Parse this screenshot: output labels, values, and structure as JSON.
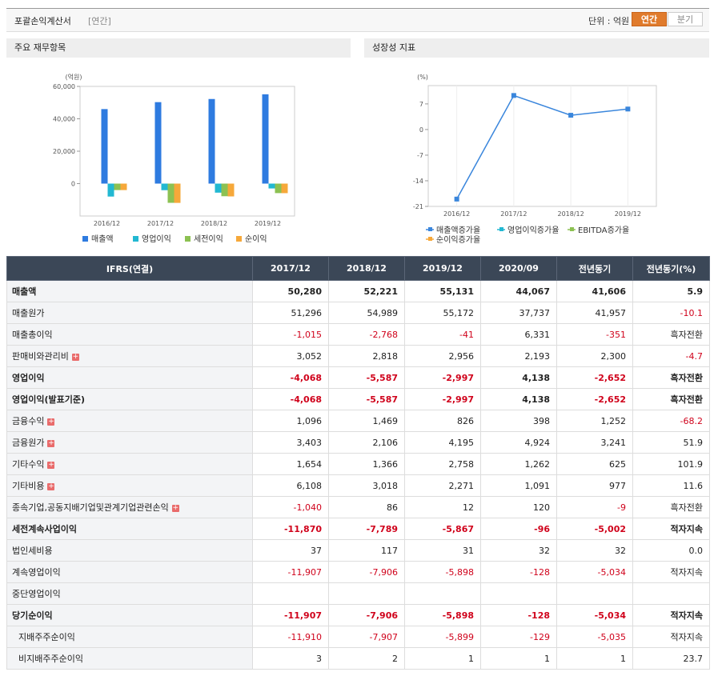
{
  "header": {
    "title": "포괄손익계산서",
    "period": "[연간]",
    "unit": "단위 : 억원",
    "tabs": [
      "연간",
      "분기"
    ],
    "active_tab": 0
  },
  "chart_data": [
    {
      "type": "bar",
      "title": "주요 재무항목",
      "y_label": "(억원)",
      "categories": [
        "2016/12",
        "2017/12",
        "2018/12",
        "2019/12"
      ],
      "ylim": [
        -20000,
        60000
      ],
      "yticks": [
        {
          "value": 60000,
          "label": "60,000"
        },
        {
          "value": 40000,
          "label": "40,000"
        },
        {
          "value": 20000,
          "label": "20,000"
        },
        0
      ],
      "series": [
        {
          "name": "매출액",
          "color": "#2e7be0",
          "values": [
            46000,
            50280,
            52221,
            55131
          ]
        },
        {
          "name": "영업이익",
          "color": "#22b8d2",
          "values": [
            -8000,
            -4068,
            -5587,
            -2997
          ]
        },
        {
          "name": "세전이익",
          "color": "#8cc152",
          "values": [
            -4000,
            -11870,
            -7789,
            -5867
          ]
        },
        {
          "name": "순이익",
          "color": "#f6a83a",
          "values": [
            -4000,
            -11907,
            -7906,
            -5898
          ]
        }
      ]
    },
    {
      "type": "line",
      "title": "성장성 지표",
      "y_label": "(%)",
      "categories": [
        "2016/12",
        "2017/12",
        "2018/12",
        "2019/12"
      ],
      "ylim": [
        -21,
        12
      ],
      "yticks": [
        7,
        0,
        -7,
        -14,
        -21
      ],
      "series": [
        {
          "name": "매출액증가율",
          "color": "#3a86dc",
          "values": [
            -19,
            9.3,
            3.9,
            5.6
          ]
        },
        {
          "name": "영업이익증가율",
          "color": "#22b8d2",
          "values": [
            null,
            null,
            null,
            null
          ]
        },
        {
          "name": "EBITDA증가율",
          "color": "#8cc152",
          "values": [
            null,
            null,
            null,
            null
          ]
        },
        {
          "name": "순이익증가율",
          "color": "#f6a83a",
          "values": [
            null,
            null,
            null,
            null
          ]
        }
      ]
    }
  ],
  "table": {
    "columns": [
      "IFRS(연결)",
      "2017/12",
      "2018/12",
      "2019/12",
      "2020/09",
      "전년동기",
      "전년동기(%)"
    ],
    "rows": [
      {
        "label": "매출액",
        "bold": true,
        "values": [
          "50,280",
          "52,221",
          "55,131",
          "44,067",
          "41,606",
          "5.9"
        ]
      },
      {
        "label": "매출원가",
        "values": [
          "51,296",
          "54,989",
          "55,172",
          "37,737",
          "41,957",
          "-10.1"
        ]
      },
      {
        "label": "매출총이익",
        "values": [
          "-1,015",
          "-2,768",
          "-41",
          "6,331",
          "-351",
          "흑자전환"
        ]
      },
      {
        "label": "판매비와관리비",
        "expand": true,
        "values": [
          "3,052",
          "2,818",
          "2,956",
          "2,193",
          "2,300",
          "-4.7"
        ]
      },
      {
        "label": "영업이익",
        "bold": true,
        "values": [
          "-4,068",
          "-5,587",
          "-2,997",
          "4,138",
          "-2,652",
          "흑자전환"
        ]
      },
      {
        "label": "영업이익(발표기준)",
        "bold": true,
        "values": [
          "-4,068",
          "-5,587",
          "-2,997",
          "4,138",
          "-2,652",
          "흑자전환"
        ]
      },
      {
        "label": "금융수익",
        "expand": true,
        "values": [
          "1,096",
          "1,469",
          "826",
          "398",
          "1,252",
          "-68.2"
        ]
      },
      {
        "label": "금융원가",
        "expand": true,
        "values": [
          "3,403",
          "2,106",
          "4,195",
          "4,924",
          "3,241",
          "51.9"
        ]
      },
      {
        "label": "기타수익",
        "expand": true,
        "values": [
          "1,654",
          "1,366",
          "2,758",
          "1,262",
          "625",
          "101.9"
        ]
      },
      {
        "label": "기타비용",
        "expand": true,
        "values": [
          "6,108",
          "3,018",
          "2,271",
          "1,091",
          "977",
          "11.6"
        ]
      },
      {
        "label": "종속기업,공동지배기업및관계기업관련손익",
        "expand": true,
        "values": [
          "-1,040",
          "86",
          "12",
          "120",
          "-9",
          "흑자전환"
        ]
      },
      {
        "label": "세전계속사업이익",
        "bold": true,
        "values": [
          "-11,870",
          "-7,789",
          "-5,867",
          "-96",
          "-5,002",
          "적자지속"
        ]
      },
      {
        "label": "법인세비용",
        "values": [
          "37",
          "117",
          "31",
          "32",
          "32",
          "0.0"
        ]
      },
      {
        "label": "계속영업이익",
        "values": [
          "-11,907",
          "-7,906",
          "-5,898",
          "-128",
          "-5,034",
          "적자지속"
        ]
      },
      {
        "label": "중단영업이익",
        "values": [
          null,
          null,
          null,
          null,
          null,
          null
        ]
      },
      {
        "label": "당기순이익",
        "bold": true,
        "values": [
          "-11,907",
          "-7,906",
          "-5,898",
          "-128",
          "-5,034",
          "적자지속"
        ]
      },
      {
        "label": "지배주주순이익",
        "indent": true,
        "values": [
          "-11,910",
          "-7,907",
          "-5,899",
          "-129",
          "-5,035",
          "적자지속"
        ]
      },
      {
        "label": "비지배주주순이익",
        "indent": true,
        "values": [
          "3",
          "2",
          "1",
          "1",
          "1",
          "23.7"
        ]
      }
    ]
  }
}
